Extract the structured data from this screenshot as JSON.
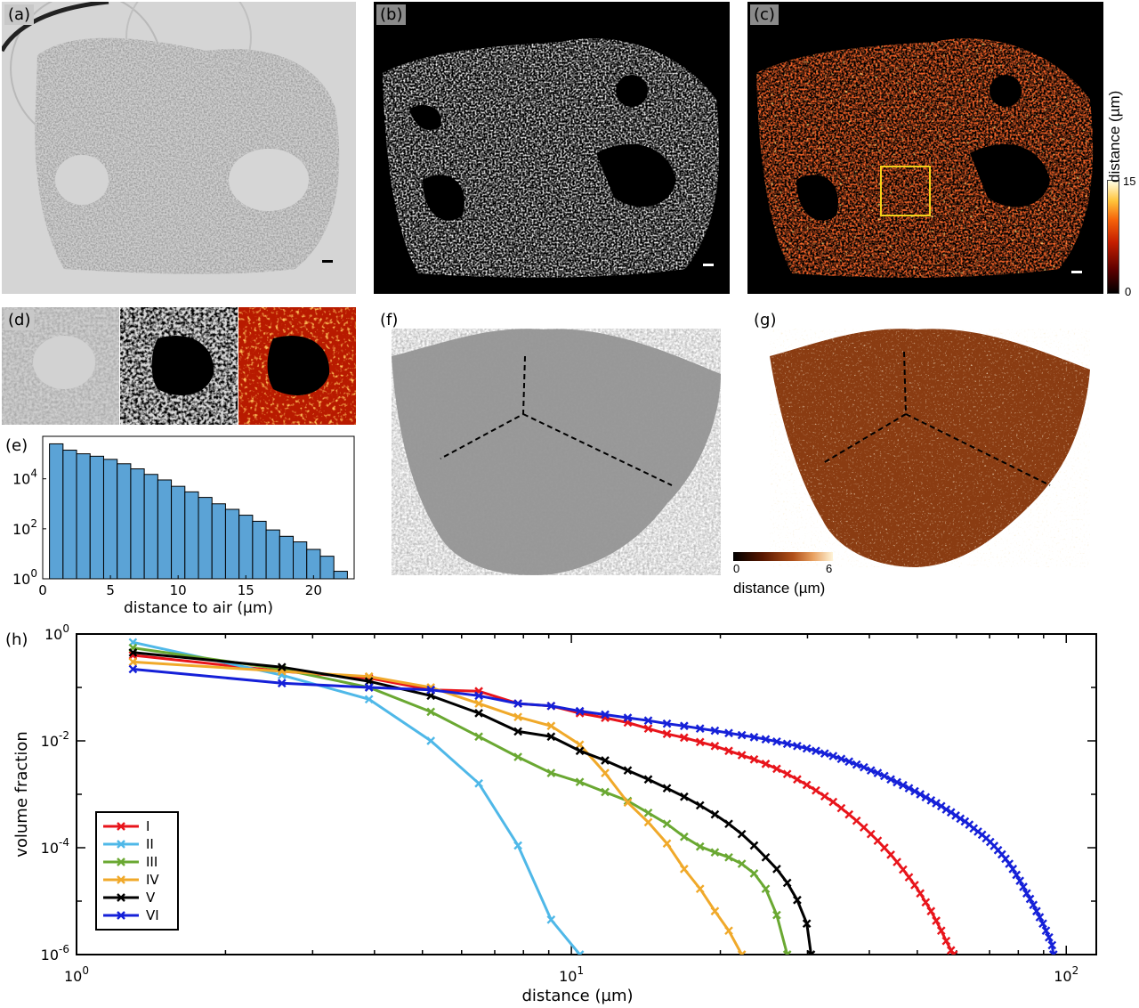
{
  "panels": {
    "a": {
      "label": "(a)"
    },
    "b": {
      "label": "(b)"
    },
    "c": {
      "label": "(c)",
      "colorbar": {
        "title": "distance (µm)",
        "max": "15",
        "min": "0"
      }
    },
    "d": {
      "label": "(d)"
    },
    "e": {
      "label": "(e)"
    },
    "f": {
      "label": "(f)"
    },
    "g": {
      "label": "(g)",
      "colorbar": {
        "title": "distance (µm)",
        "min": "0",
        "max": "6"
      }
    },
    "h": {
      "label": "(h)"
    }
  },
  "colors": {
    "I": "#e8141b",
    "II": "#4fb8e8",
    "III": "#6aa832",
    "IV": "#f0a92a",
    "V": "#000000",
    "VI": "#1520d8",
    "histogram_bar": "#5ba3d6"
  },
  "chart_data": [
    {
      "panel": "e",
      "type": "bar",
      "x": [
        1,
        2,
        3,
        4,
        5,
        6,
        7,
        8,
        9,
        10,
        11,
        12,
        13,
        14,
        15,
        16,
        17,
        18,
        19,
        20,
        21,
        22
      ],
      "values": [
        250000,
        140000,
        100000,
        80000,
        60000,
        40000,
        25000,
        15000,
        9000,
        5000,
        3000,
        1800,
        1000,
        600,
        350,
        200,
        90,
        50,
        30,
        15,
        8,
        2
      ],
      "xlabel": "distance to air (µm)",
      "ylabel": "",
      "yscale": "log",
      "xlim": [
        0,
        23
      ],
      "ylim": [
        1,
        500000
      ],
      "xticks": [
        "0",
        "5",
        "10",
        "15",
        "20"
      ],
      "yticks": [
        "10^0",
        "10^2",
        "10^4"
      ]
    },
    {
      "panel": "h",
      "type": "line",
      "xlabel": "distance (µm)",
      "ylabel": "volume fraction",
      "xscale": "log",
      "yscale": "log",
      "xlim": [
        1,
        115
      ],
      "ylim": [
        1e-06,
        1
      ],
      "xticks": [
        {
          "base": "10",
          "exp": "0"
        },
        {
          "base": "10",
          "exp": "1"
        },
        {
          "base": "10",
          "exp": "2"
        }
      ],
      "yticks": [
        {
          "base": "10",
          "exp": "0"
        },
        {
          "base": "10",
          "exp": "-2"
        },
        {
          "base": "10",
          "exp": "-4"
        },
        {
          "base": "10",
          "exp": "-6"
        }
      ],
      "legend": "bottom-left",
      "series": [
        {
          "name": "I",
          "x": [
            1.3,
            2.6,
            3.9,
            5.2,
            6.5,
            7.8,
            9.1,
            10.4,
            11.7,
            13,
            14.3,
            15.6,
            16.9,
            18.2,
            19.5,
            20.8,
            22.1,
            23.4,
            24.7,
            26,
            27.3,
            28.6,
            29.9,
            31.2,
            32.5,
            33.8,
            35.1,
            36.4,
            37.7,
            39,
            40.3,
            41.6,
            42.9,
            44.2,
            45.5,
            46.8,
            48.1,
            49.4,
            50.7,
            52,
            53.3,
            54.6,
            55.9,
            57.2,
            58.5,
            59.2
          ],
          "y": [
            0.4,
            0.2,
            0.15,
            0.09,
            0.085,
            0.05,
            0.045,
            0.033,
            0.027,
            0.022,
            0.017,
            0.0135,
            0.0115,
            0.0095,
            0.008,
            0.0065,
            0.0054,
            0.0045,
            0.0037,
            0.003,
            0.0024,
            0.0019,
            0.0015,
            0.00118,
            0.00092,
            0.00072,
            0.00055,
            0.00042,
            0.00032,
            0.00024,
            0.00018,
            0.000135,
            0.0001,
            7.4e-05,
            5.4e-05,
            3.9e-05,
            2.8e-05,
            2e-05,
            1.4e-05,
            9.5e-06,
            6.5e-06,
            4.3e-06,
            2.8e-06,
            1.8e-06,
            1.2e-06,
            1e-06
          ]
        },
        {
          "name": "II",
          "x": [
            1.3,
            2.6,
            3.9,
            5.2,
            6.5,
            7.8,
            9.1,
            10.4
          ],
          "y": [
            0.7,
            0.17,
            0.06,
            0.01,
            0.0016,
            0.00011,
            4.5e-06,
            1e-06
          ]
        },
        {
          "name": "III",
          "x": [
            1.3,
            2.6,
            3.9,
            5.2,
            6.5,
            7.8,
            9.1,
            10.4,
            11.7,
            13,
            14.3,
            15.6,
            16.9,
            18.2,
            19.5,
            20.8,
            22.1,
            23.4,
            24.7,
            26,
            27.3
          ],
          "y": [
            0.55,
            0.22,
            0.1,
            0.035,
            0.012,
            0.005,
            0.0025,
            0.0017,
            0.0011,
            0.00075,
            0.00045,
            0.00028,
            0.00016,
            0.000105,
            8.2e-05,
            6.6e-05,
            5e-05,
            3.3e-05,
            1.7e-05,
            5.5e-06,
            1e-06
          ]
        },
        {
          "name": "IV",
          "x": [
            1.3,
            2.6,
            3.9,
            5.2,
            6.5,
            7.8,
            9.1,
            10.4,
            11.7,
            13,
            14.3,
            15.6,
            16.9,
            18.2,
            19.5,
            20.8,
            22.1
          ],
          "y": [
            0.3,
            0.2,
            0.16,
            0.1,
            0.05,
            0.028,
            0.019,
            0.0085,
            0.0025,
            0.0007,
            0.0003,
            0.00012,
            4e-05,
            1.7e-05,
            6.5e-06,
            2.8e-06,
            1e-06
          ]
        },
        {
          "name": "V",
          "x": [
            1.3,
            2.6,
            3.9,
            5.2,
            6.5,
            7.8,
            9.1,
            10.4,
            11.7,
            13,
            14.3,
            15.6,
            16.9,
            18.2,
            19.5,
            20.8,
            22.1,
            23.4,
            24.7,
            26,
            27.3,
            28.6,
            29.9,
            30.5
          ],
          "y": [
            0.45,
            0.24,
            0.13,
            0.07,
            0.033,
            0.015,
            0.012,
            0.0065,
            0.0043,
            0.0028,
            0.0019,
            0.0013,
            0.0009,
            0.00062,
            0.00042,
            0.00028,
            0.00018,
            0.00011,
            6.6e-05,
            4e-05,
            2.2e-05,
            1.05e-05,
            3.8e-06,
            1e-06
          ]
        },
        {
          "name": "VI",
          "x": [
            1.3,
            2.6,
            3.9,
            5.2,
            6.5,
            7.8,
            9.1,
            10.4,
            11.7,
            13,
            14.3,
            15.6,
            16.9,
            18.2,
            19.5,
            20.8,
            22.1,
            23.4,
            24.7,
            26,
            27.3,
            28.6,
            29.9,
            31.2,
            32.5,
            33.8,
            35.1,
            36.4,
            37.7,
            39,
            40.3,
            41.6,
            42.9,
            44.2,
            45.5,
            46.8,
            48.1,
            49.4,
            50.7,
            52,
            53.3,
            54.6,
            55.9,
            57.2,
            58.5,
            59.8,
            61.1,
            62.4,
            63.7,
            65,
            66.3,
            67.6,
            68.9,
            70.2,
            71.5,
            72.8,
            74.1,
            75.4,
            76.7,
            78,
            79.3,
            80.6,
            81.9,
            83.2,
            84.5,
            85.8,
            87.1,
            88.4,
            89.7,
            91,
            92.3,
            93.6,
            94.2
          ],
          "y": [
            0.22,
            0.12,
            0.1,
            0.09,
            0.07,
            0.05,
            0.045,
            0.036,
            0.031,
            0.027,
            0.024,
            0.021,
            0.019,
            0.017,
            0.0155,
            0.014,
            0.0128,
            0.0117,
            0.0107,
            0.0097,
            0.0088,
            0.008,
            0.0072,
            0.0065,
            0.0058,
            0.0052,
            0.0046,
            0.0041,
            0.0036,
            0.0032,
            0.0028,
            0.0025,
            0.0022,
            0.0019,
            0.00168,
            0.00148,
            0.0013,
            0.00114,
            0.001,
            0.00088,
            0.00077,
            0.00068,
            0.0006,
            0.00052,
            0.00046,
            0.0004,
            0.00035,
            0.00031,
            0.00027,
            0.00023,
            0.0002,
            0.000175,
            0.00015,
            0.000128,
            0.000108,
            9e-05,
            7.5e-05,
            6.2e-05,
            5e-05,
            4e-05,
            3.1e-05,
            2.4e-05,
            1.85e-05,
            1.4e-05,
            1.1e-05,
            8.5e-06,
            6.5e-06,
            5e-06,
            3.8e-06,
            2.8e-06,
            2.1e-06,
            1.5e-06,
            1e-06
          ]
        }
      ]
    }
  ]
}
